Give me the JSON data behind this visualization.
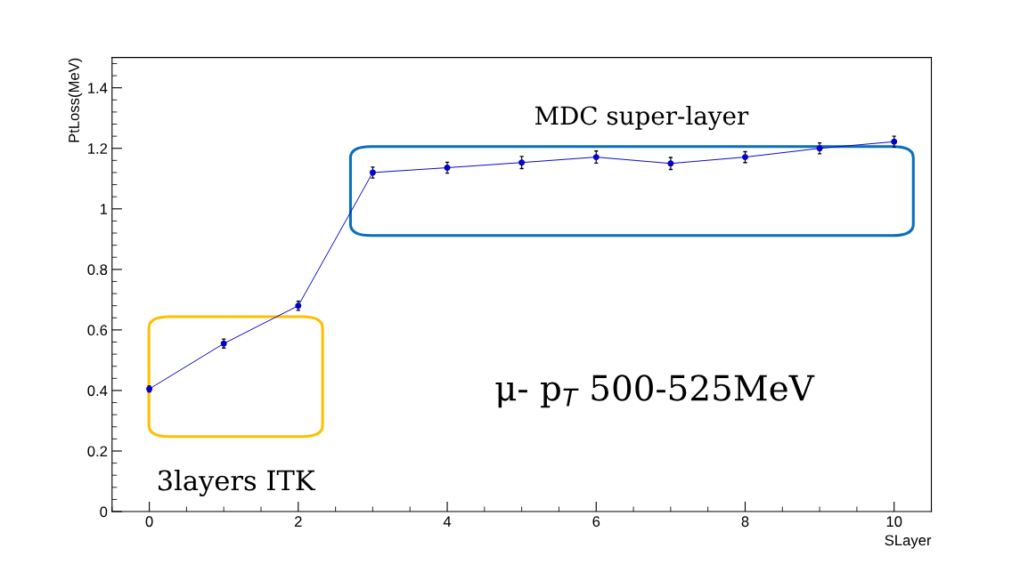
{
  "chart_data": {
    "type": "line",
    "xlabel": "SLayer",
    "ylabel": "PtLoss(MeV)",
    "x": [
      0,
      1,
      2,
      3,
      4,
      5,
      6,
      7,
      8,
      9,
      10
    ],
    "series": [
      {
        "color": "#0000cc",
        "values": [
          0.405,
          0.555,
          0.68,
          1.12,
          1.136,
          1.153,
          1.171,
          1.15,
          1.171,
          1.2,
          1.222
        ],
        "errors": [
          0.01,
          0.015,
          0.015,
          0.018,
          0.018,
          0.02,
          0.02,
          0.02,
          0.018,
          0.018,
          0.018
        ]
      }
    ],
    "xlim": [
      -0.5,
      10.5
    ],
    "xticks": [
      0,
      2,
      4,
      6,
      8,
      10
    ],
    "ylim": [
      0,
      1.5
    ],
    "yticks": [
      0,
      0.2,
      0.4,
      0.6,
      0.8,
      1,
      1.2,
      1.4
    ],
    "marker": "circle",
    "grid": false,
    "annotations": [
      "MDC super-layer",
      "μ- p$_{T}$ 500-525MeV",
      "3layers ITK"
    ]
  }
}
